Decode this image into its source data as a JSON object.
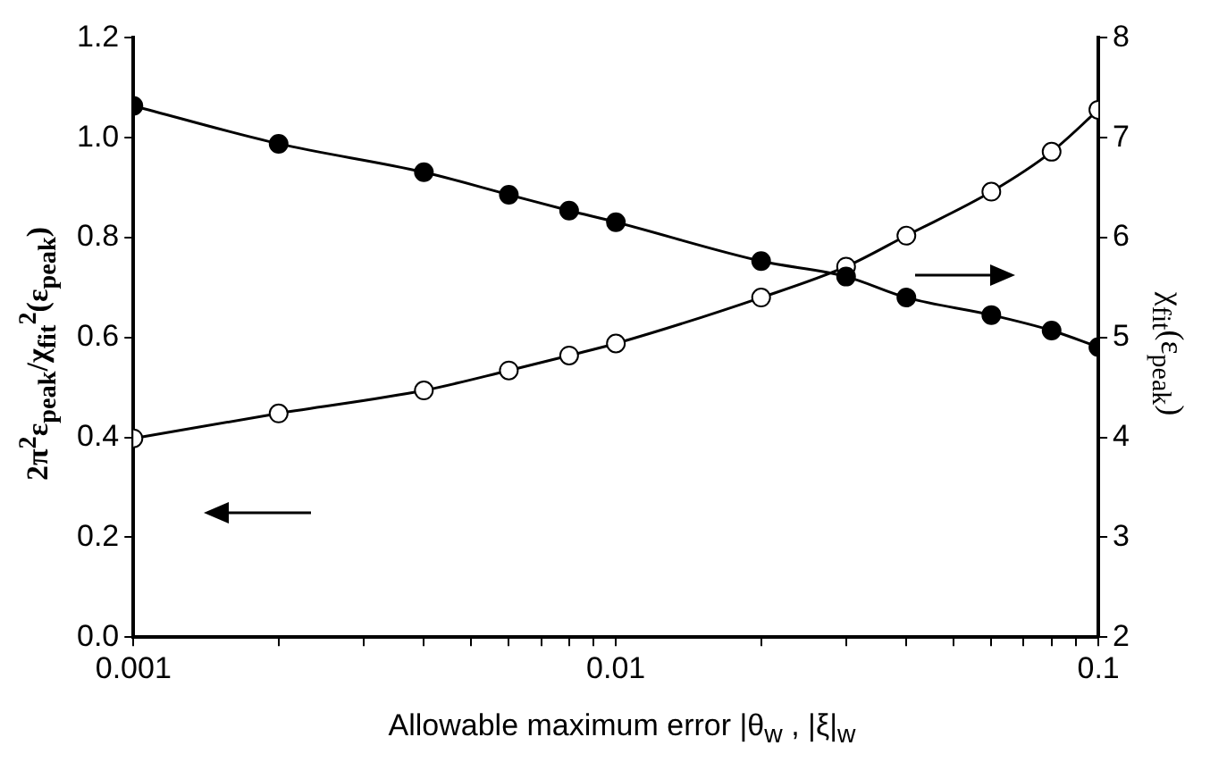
{
  "chart_data": {
    "type": "line",
    "xlabel": "Allowable maximum error |θ$_{w}$ , |ξ|$_{w}$",
    "ylabel": "2π$^{2}$ε$_{peak}$/χ$_{fit}$$^{2}$(ε$_{peak}$)",
    "y2label": "χ$_{fit}$(ε$_{peak}$)",
    "x": [
      0.001,
      0.002,
      0.004,
      0.006,
      0.008,
      0.01,
      0.02,
      0.03,
      0.04,
      0.06,
      0.08,
      0.1
    ],
    "series": [
      {
        "color": "#000000",
        "values": [
          1.064,
          0.988,
          0.931,
          0.886,
          0.854,
          0.831,
          0.753,
          0.722,
          0.68,
          0.645,
          0.614,
          0.581
        ]
      },
      {
        "color": "#000000",
        "axis": "y2",
        "values": [
          3.99,
          4.24,
          4.47,
          4.67,
          4.82,
          4.94,
          5.4,
          5.71,
          6.02,
          6.46,
          6.86,
          7.28
        ]
      }
    ],
    "log": "x",
    "xlim": [
      0.001,
      0.1
    ],
    "xticks": [
      0.001,
      {
        "value": 0.002,
        "label": null
      },
      {
        "value": 0.003,
        "label": null
      },
      {
        "value": 0.004,
        "label": null
      },
      {
        "value": 0.005,
        "label": null
      },
      {
        "value": 0.006,
        "label": null
      },
      {
        "value": 0.007,
        "label": null
      },
      {
        "value": 0.008,
        "label": null
      },
      {
        "value": 0.009,
        "label": null
      },
      0.01,
      {
        "value": 0.02,
        "label": null
      },
      {
        "value": 0.03,
        "label": null
      },
      {
        "value": 0.04,
        "label": null
      },
      {
        "value": 0.05,
        "label": null
      },
      {
        "value": 0.06,
        "label": null
      },
      {
        "value": 0.07,
        "label": null
      },
      {
        "value": 0.08,
        "label": null
      },
      {
        "value": 0.09,
        "label": null
      },
      0.1
    ],
    "ylim": [
      0,
      1.2
    ],
    "yticks": [
      {
        "value": 0,
        "label": "0.0"
      },
      0.2,
      0.4,
      0.6,
      0.8,
      {
        "value": 1,
        "label": "1.0"
      },
      1.2
    ],
    "y2lim": [
      2,
      8
    ],
    "y2ticks": [
      2,
      3,
      4,
      5,
      6,
      7,
      8
    ],
    "grid": false,
    "legend": false,
    "marker": "circle",
    "line_style": "solid"
  }
}
